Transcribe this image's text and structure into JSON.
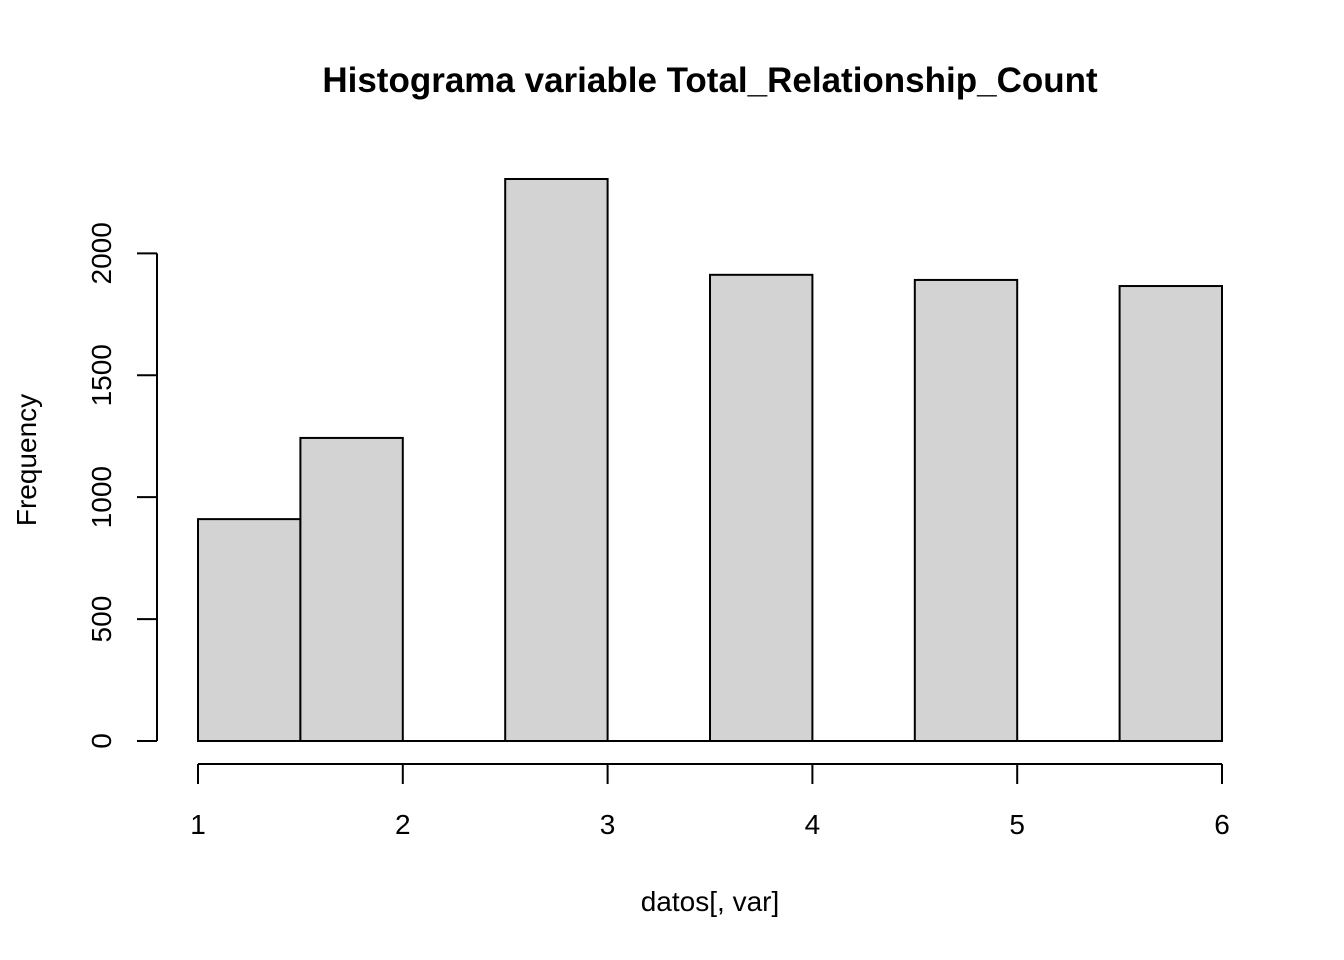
{
  "chart_data": {
    "type": "bar",
    "title": "Histograma variable Total_Relationship_Count",
    "xlabel": "datos[, var]",
    "ylabel": "Frequency",
    "bins": [
      {
        "x0": 1.0,
        "x1": 1.5,
        "count": 910
      },
      {
        "x0": 1.5,
        "x1": 2.0,
        "count": 1243
      },
      {
        "x0": 2.0,
        "x1": 2.5,
        "count": 0
      },
      {
        "x0": 2.5,
        "x1": 3.0,
        "count": 2305
      },
      {
        "x0": 3.0,
        "x1": 3.5,
        "count": 0
      },
      {
        "x0": 3.5,
        "x1": 4.0,
        "count": 1912
      },
      {
        "x0": 4.0,
        "x1": 4.5,
        "count": 0
      },
      {
        "x0": 4.5,
        "x1": 5.0,
        "count": 1891
      },
      {
        "x0": 5.0,
        "x1": 5.5,
        "count": 0
      },
      {
        "x0": 5.5,
        "x1": 6.0,
        "count": 1866
      }
    ],
    "xlim": [
      1,
      6
    ],
    "ylim": [
      0,
      2305
    ],
    "x_ticks": [
      1,
      2,
      3,
      4,
      5,
      6
    ],
    "y_ticks": [
      0,
      500,
      1000,
      1500,
      2000
    ],
    "grid": false,
    "bar_color": "#d3d3d3",
    "bar_border_color": "#000000"
  }
}
